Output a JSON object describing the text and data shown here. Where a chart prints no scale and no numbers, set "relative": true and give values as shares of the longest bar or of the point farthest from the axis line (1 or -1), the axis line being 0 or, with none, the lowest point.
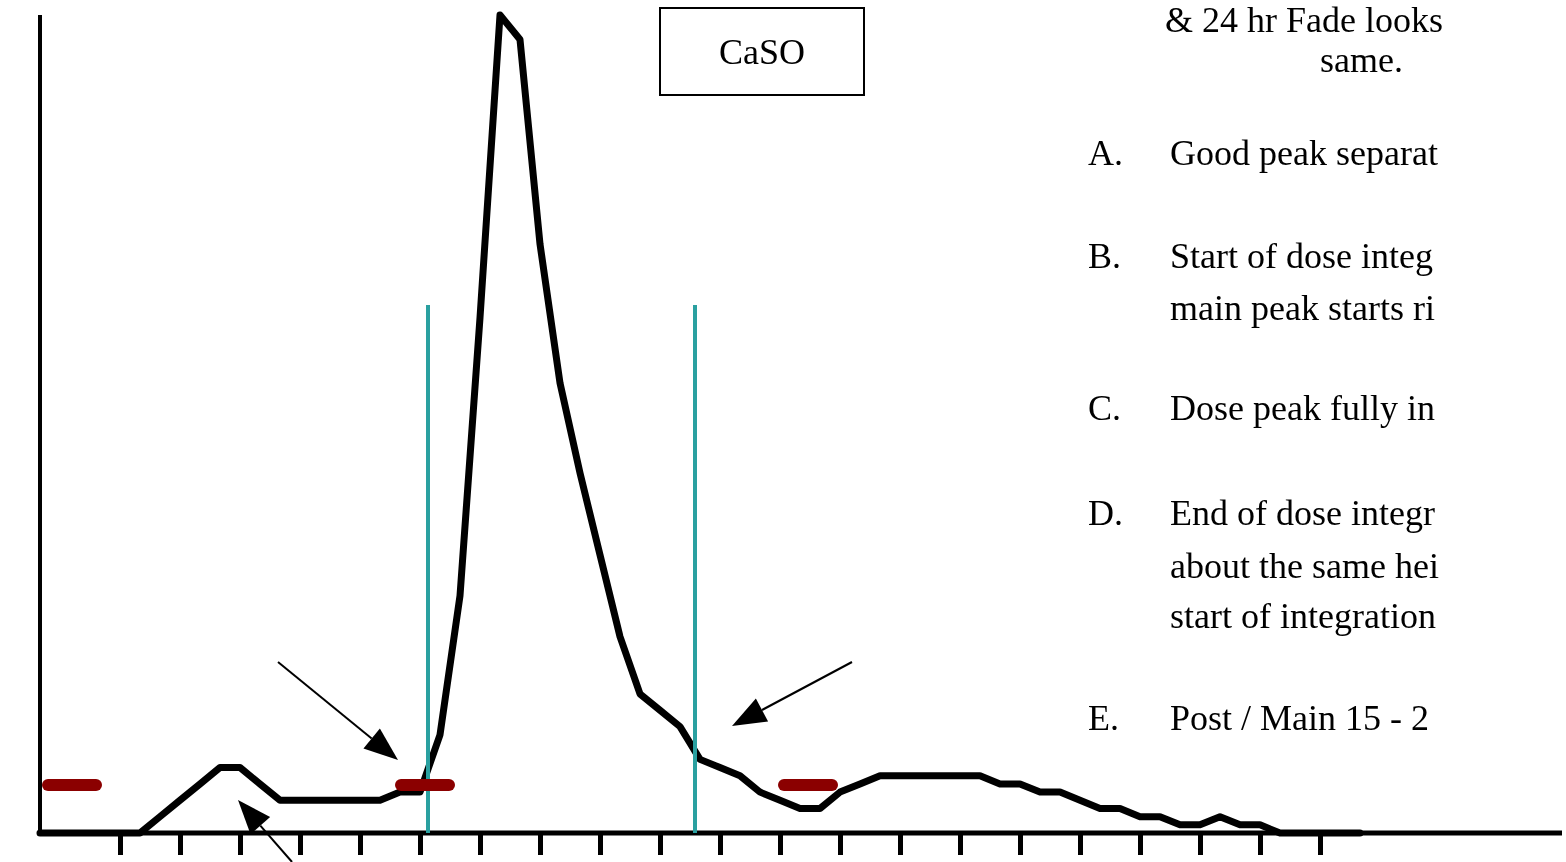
{
  "chart_data": {
    "type": "line",
    "relative": true,
    "categories": [
      null,
      null,
      null,
      null,
      null,
      null,
      null,
      null,
      null,
      null,
      null,
      null,
      null,
      null,
      null,
      null,
      null,
      null,
      null,
      null,
      null,
      null,
      null,
      null,
      null,
      null,
      null,
      null,
      null,
      null,
      null,
      null,
      null,
      null,
      null,
      null,
      null,
      null,
      null,
      null,
      null,
      null,
      null,
      null,
      null,
      null,
      null,
      null,
      null,
      null,
      null,
      null,
      null,
      null,
      null,
      null,
      null,
      null,
      null,
      null,
      null,
      null,
      null,
      null,
      null,
      null,
      null
    ],
    "series": [
      {
        "color": "#000000",
        "values": [
          0,
          0,
          0,
          0,
          0,
          0,
          0.02,
          0.04,
          0.06,
          0.08,
          0.08,
          0.06,
          0.04,
          0.04,
          0.04,
          0.04,
          0.04,
          0.04,
          0.05,
          0.05,
          0.12,
          0.29,
          0.63,
          1,
          0.97,
          0.72,
          0.55,
          0.44,
          0.34,
          0.24,
          0.17,
          0.15,
          0.13,
          0.09,
          0.08,
          0.07,
          0.05,
          0.04,
          0.03,
          0.03,
          0.05,
          0.06,
          0.07,
          0.07,
          0.07,
          0.07,
          0.07,
          0.07,
          0.06,
          0.06,
          0.05,
          0.05,
          0.04,
          0.03,
          0.03,
          0.02,
          0.02,
          0.01,
          0.01,
          0.02,
          0.01,
          0.01,
          0,
          0,
          0,
          0,
          0
        ]
      }
    ],
    "annotations": [
      "& 24 hr Fade looks",
      "same.",
      "A.",
      "Good peak separat",
      "B.",
      "Start of dose integ",
      "main peak starts ri",
      "C.",
      "Dose peak fully in",
      "D.",
      "End of dose integr",
      "about the same hei",
      "start of integration",
      "E.",
      "Post / Main 15 - 2",
      "CaSO"
    ]
  }
}
